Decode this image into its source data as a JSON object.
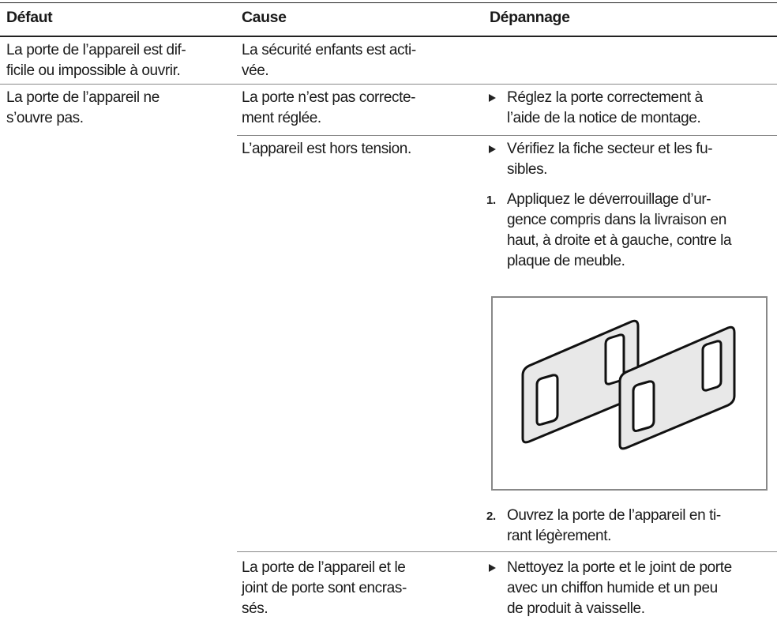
{
  "table": {
    "header": [
      "Défaut",
      "Cause",
      "Dépannage"
    ],
    "rows": [
      {
        "fault": [
          "La porte de l’appareil est dif-",
          "ficile ou impossible à ouvrir."
        ],
        "causes": [
          {
            "cause": [
              "La sécurité enfants est acti-",
              "vée."
            ]
          }
        ]
      },
      {
        "fault": [
          "La porte de l’appareil ne",
          "s’ouvre pas."
        ],
        "causes": [
          {
            "cause": [
              "La porte n’est pas correcte-",
              "ment réglée."
            ],
            "remedies": [
              {
                "text": [
                  "Réglez la porte correctement à",
                  "l’aide de la notice de montage."
                ]
              }
            ]
          },
          {
            "cause": [
              "L’appareil est hors tension."
            ],
            "remedies": [
              {
                "text": [
                  "Vérifiez la fiche secteur et les fu-",
                  "sibles."
                ]
              },
              {
                "step": "1.",
                "text": [
                  "Appliquez le déverrouillage d’ur-",
                  "gence compris dans la livraison en",
                  "haut, à droite et à gauche, contre la",
                  "plaque de meuble."
                ]
              },
              {
                "step": "2.",
                "text": [
                  "Ouvrez la porte de l’appareil en ti-",
                  "rant légèrement."
                ]
              }
            ]
          },
          {
            "cause": [
              "La porte de l’appareil et le",
              "joint de porte sont encras-",
              "sés."
            ],
            "remedies": [
              {
                "text": [
                  "Nettoyez la porte et le joint de porte",
                  "avec un chiffon humide et un peu",
                  "de produit à vaisselle."
                ]
              }
            ]
          }
        ]
      }
    ]
  }
}
